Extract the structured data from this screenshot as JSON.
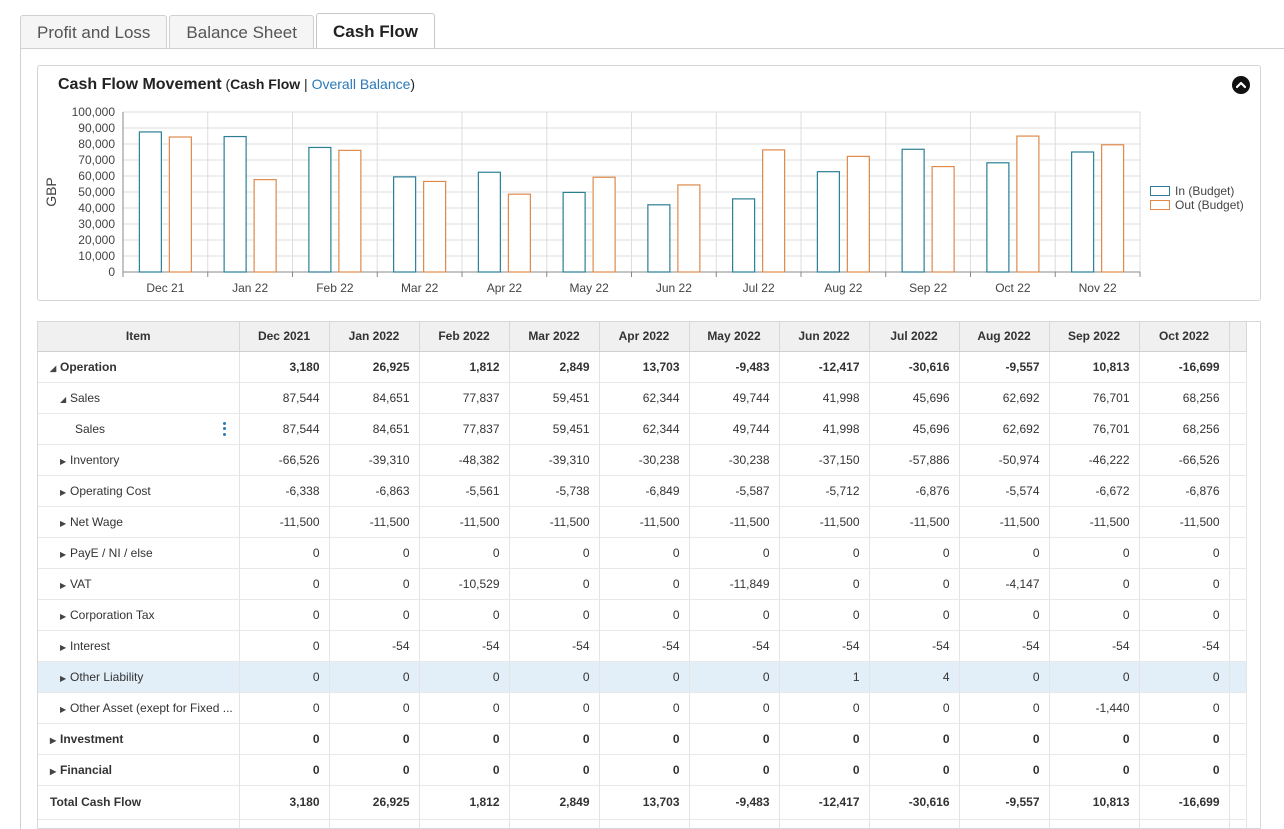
{
  "tabs": [
    {
      "label": "Profit and Loss",
      "active": false
    },
    {
      "label": "Balance Sheet",
      "active": false
    },
    {
      "label": "Cash Flow",
      "active": true
    }
  ],
  "chart_panel": {
    "title": "Cash Flow Movement",
    "paren_open": " (",
    "subtitle_active": "Cash Flow",
    "separator": " | ",
    "subtitle_link": "Overall Balance",
    "paren_close": ")",
    "collapse_icon": "chevron-up-circle-icon"
  },
  "chart_data": {
    "type": "bar",
    "categories": [
      "Dec 21",
      "Jan 22",
      "Feb 22",
      "Mar 22",
      "Apr 22",
      "May 22",
      "Jun 22",
      "Jul 22",
      "Aug 22",
      "Sep 22",
      "Oct 22",
      "Nov 22"
    ],
    "series": [
      {
        "name": "In (Budget)",
        "color": "#2a7f96",
        "values": [
          87544,
          84651,
          77837,
          59451,
          62344,
          49744,
          41998,
          45696,
          62692,
          76701,
          68256,
          75000
        ]
      },
      {
        "name": "Out (Budget)",
        "color": "#e08a4a",
        "values": [
          84364,
          57726,
          76025,
          56602,
          48641,
          59227,
          54415,
          76312,
          72249,
          65888,
          84955,
          79500
        ]
      }
    ],
    "ylabel": "GBP",
    "ylim": [
      0,
      100000
    ],
    "yticks": [
      "0",
      "10,000",
      "20,000",
      "30,000",
      "40,000",
      "50,000",
      "60,000",
      "70,000",
      "80,000",
      "90,000",
      "100,000"
    ],
    "grid": true,
    "legend_position": "right"
  },
  "table": {
    "headers": [
      "Item",
      "Dec 2021",
      "Jan 2022",
      "Feb 2022",
      "Mar 2022",
      "Apr 2022",
      "May 2022",
      "Jun 2022",
      "Jul 2022",
      "Aug 2022",
      "Sep 2022",
      "Oct 2022"
    ],
    "rows": [
      {
        "label": "Operation",
        "level": 0,
        "expander": "open",
        "bold": true,
        "values": [
          "3,180",
          "26,925",
          "1,812",
          "2,849",
          "13,703",
          "-9,483",
          "-12,417",
          "-30,616",
          "-9,557",
          "10,813",
          "-16,699"
        ]
      },
      {
        "label": "Sales",
        "level": 1,
        "expander": "open",
        "values": [
          "87,544",
          "84,651",
          "77,837",
          "59,451",
          "62,344",
          "49,744",
          "41,998",
          "45,696",
          "62,692",
          "76,701",
          "68,256"
        ]
      },
      {
        "label": "Sales",
        "level": 2,
        "expander": "none",
        "kebab": true,
        "values": [
          "87,544",
          "84,651",
          "77,837",
          "59,451",
          "62,344",
          "49,744",
          "41,998",
          "45,696",
          "62,692",
          "76,701",
          "68,256"
        ]
      },
      {
        "label": "Inventory",
        "level": 1,
        "expander": "closed",
        "values": [
          "-66,526",
          "-39,310",
          "-48,382",
          "-39,310",
          "-30,238",
          "-30,238",
          "-37,150",
          "-57,886",
          "-50,974",
          "-46,222",
          "-66,526"
        ]
      },
      {
        "label": "Operating Cost",
        "level": 1,
        "expander": "closed",
        "values": [
          "-6,338",
          "-6,863",
          "-5,561",
          "-5,738",
          "-6,849",
          "-5,587",
          "-5,712",
          "-6,876",
          "-5,574",
          "-6,672",
          "-6,876"
        ]
      },
      {
        "label": "Net Wage",
        "level": 1,
        "expander": "closed",
        "values": [
          "-11,500",
          "-11,500",
          "-11,500",
          "-11,500",
          "-11,500",
          "-11,500",
          "-11,500",
          "-11,500",
          "-11,500",
          "-11,500",
          "-11,500"
        ]
      },
      {
        "label": "PayE / NI / else",
        "level": 1,
        "expander": "closed",
        "values": [
          "0",
          "0",
          "0",
          "0",
          "0",
          "0",
          "0",
          "0",
          "0",
          "0",
          "0"
        ]
      },
      {
        "label": "VAT",
        "level": 1,
        "expander": "closed",
        "values": [
          "0",
          "0",
          "-10,529",
          "0",
          "0",
          "-11,849",
          "0",
          "0",
          "-4,147",
          "0",
          "0"
        ]
      },
      {
        "label": "Corporation Tax",
        "level": 1,
        "expander": "closed",
        "values": [
          "0",
          "0",
          "0",
          "0",
          "0",
          "0",
          "0",
          "0",
          "0",
          "0",
          "0"
        ]
      },
      {
        "label": "Interest",
        "level": 1,
        "expander": "closed",
        "values": [
          "0",
          "-54",
          "-54",
          "-54",
          "-54",
          "-54",
          "-54",
          "-54",
          "-54",
          "-54",
          "-54"
        ]
      },
      {
        "label": "Other Liability",
        "level": 1,
        "expander": "closed",
        "highlight": true,
        "values": [
          "0",
          "0",
          "0",
          "0",
          "0",
          "0",
          "1",
          "4",
          "0",
          "0",
          "0"
        ]
      },
      {
        "label": "Other Asset (exept for Fixed ...",
        "level": 1,
        "expander": "closed",
        "values": [
          "0",
          "0",
          "0",
          "0",
          "0",
          "0",
          "0",
          "0",
          "0",
          "-1,440",
          "0"
        ]
      },
      {
        "label": "Investment",
        "level": 0,
        "expander": "closed",
        "bold": true,
        "values": [
          "0",
          "0",
          "0",
          "0",
          "0",
          "0",
          "0",
          "0",
          "0",
          "0",
          "0"
        ]
      },
      {
        "label": "Financial",
        "level": 0,
        "expander": "closed",
        "bold": true,
        "values": [
          "0",
          "0",
          "0",
          "0",
          "0",
          "0",
          "0",
          "0",
          "0",
          "0",
          "0"
        ]
      },
      {
        "label": "Total Cash Flow",
        "level": 0,
        "expander": "none",
        "bold": true,
        "total": true,
        "values": [
          "3,180",
          "26,925",
          "1,812",
          "2,849",
          "13,703",
          "-9,483",
          "-12,417",
          "-30,616",
          "-9,557",
          "10,813",
          "-16,699"
        ]
      }
    ]
  }
}
